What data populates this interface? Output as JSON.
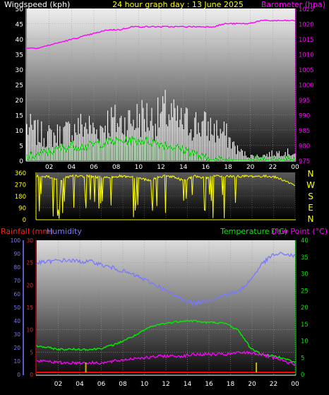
{
  "header": {
    "left_title": "Windspeed (kph)",
    "center_title": "24 hour graph day : 13 June 2025",
    "right_title": "Barometer (hpa)"
  },
  "wind_direction_labels": [
    "N",
    "W",
    "S",
    "E",
    "N"
  ],
  "bottom_header": {
    "rainfall": "Rainfall (mm)",
    "humidity": "Humidity",
    "temperature": "Temperature (°C)",
    "dewpoint": "Dew Point (°C)"
  },
  "colors": {
    "wind_gust": "#ffffff",
    "wind_avg": "#c8f0c8",
    "wind_avg_line": "#00dd00",
    "barometer": "#ff00ff",
    "direction": "#ffff00",
    "rain_axis": "#ff2020",
    "humidity": "#7878ff",
    "temperature": "#00ee00",
    "dewpoint": "#ff00ff",
    "rain_marks": "#c8b400"
  },
  "chart_data": [
    {
      "type": "line",
      "title": "24 hour graph day : 13 June 2025",
      "x_ticks": [
        "02",
        "04",
        "06",
        "08",
        "10",
        "12",
        "14",
        "16",
        "18",
        "20",
        "22",
        "00"
      ],
      "ylabel": "Windspeed (kph)",
      "ylim": [
        0,
        50
      ],
      "y_ticks": [
        0,
        5,
        10,
        15,
        20,
        25,
        30,
        35,
        40,
        45,
        50
      ],
      "y2label": "Barometer (hpa)",
      "y2lim": [
        975,
        1025
      ],
      "y2_ticks": [
        975,
        980,
        985,
        990,
        995,
        1000,
        1005,
        1010,
        1015,
        1020,
        1025
      ],
      "grid": true,
      "series": [
        {
          "name": "Windspeed",
          "values": [
            2,
            4,
            6,
            8,
            10,
            9,
            11,
            12,
            13,
            13,
            13,
            12,
            10,
            8,
            6,
            2,
            0,
            0,
            0,
            0,
            0,
            0,
            1,
            0
          ]
        },
        {
          "name": "Gust",
          "values": [
            15,
            12,
            11,
            12,
            14,
            16,
            13,
            18,
            17,
            18,
            20,
            18,
            22,
            17,
            17,
            16,
            14,
            12,
            5,
            2,
            2,
            3,
            4,
            3
          ]
        },
        {
          "name": "Barometer",
          "values": [
            1012,
            1012,
            1013,
            1014,
            1015,
            1016,
            1017,
            1018,
            1018,
            1019,
            1019,
            1019,
            1019,
            1019,
            1019,
            1019,
            1019,
            1020,
            1020,
            1020,
            1021,
            1021,
            1021,
            1021
          ]
        }
      ]
    },
    {
      "type": "line",
      "ylabel": "Wind direction (°)",
      "ylim": [
        0,
        360
      ],
      "y_ticks": [
        0,
        90,
        180,
        270,
        360
      ],
      "x_ticks": [
        "02",
        "04",
        "06",
        "08",
        "10",
        "12",
        "14",
        "16",
        "18",
        "20",
        "22",
        "00"
      ],
      "series": [
        {
          "name": "Direction",
          "values": [
            330,
            330,
            300,
            330,
            330,
            330,
            320,
            330,
            330,
            320,
            300,
            330,
            330,
            300,
            330,
            320,
            330,
            330,
            330,
            330,
            330,
            330,
            300,
            260
          ]
        }
      ]
    },
    {
      "type": "line",
      "x_ticks": [
        "02",
        "04",
        "06",
        "08",
        "10",
        "12",
        "14",
        "16",
        "18",
        "20",
        "22",
        "00"
      ],
      "ylabel": "Rainfall (mm)",
      "ylim": [
        0,
        30
      ],
      "y_ticks": [
        0,
        5,
        10,
        15,
        20,
        25,
        30
      ],
      "humidity_axis": {
        "label": "Humidity",
        "ylim": [
          0,
          100
        ],
        "ticks": [
          0,
          10,
          20,
          30,
          40,
          50,
          60,
          70,
          80,
          90,
          100
        ]
      },
      "y2label": "Temperature (°C)",
      "y2lim": [
        0,
        40
      ],
      "y2_ticks": [
        0,
        5,
        10,
        15,
        20,
        25,
        30,
        35,
        40
      ],
      "grid": true,
      "series": [
        {
          "name": "Humidity",
          "values": [
            83,
            84,
            85,
            85,
            84,
            84,
            81,
            79,
            76,
            73,
            69,
            65,
            60,
            56,
            53,
            55,
            57,
            60,
            62,
            70,
            82,
            89,
            90,
            88
          ]
        },
        {
          "name": "Temperature",
          "values": [
            8.5,
            8,
            7.5,
            7.5,
            7.5,
            7.5,
            8,
            9,
            10.5,
            12,
            14,
            15,
            15.5,
            16,
            16,
            15.5,
            15.5,
            15,
            13,
            8,
            6,
            5.5,
            5,
            3.5
          ]
        },
        {
          "name": "Dew Point",
          "values": [
            4,
            4,
            3.5,
            3.5,
            3.5,
            3.5,
            3.5,
            4,
            4.5,
            5,
            5,
            5.5,
            5.5,
            5.5,
            6,
            6,
            6,
            6,
            6.5,
            6.5,
            6,
            5,
            4,
            3
          ]
        },
        {
          "name": "Rainfall",
          "values": [
            0,
            0,
            0,
            0,
            0,
            0,
            0,
            0,
            0,
            0,
            0,
            0,
            0,
            0,
            0,
            0,
            0,
            0,
            0,
            0,
            0,
            0,
            0,
            0
          ]
        }
      ]
    }
  ]
}
